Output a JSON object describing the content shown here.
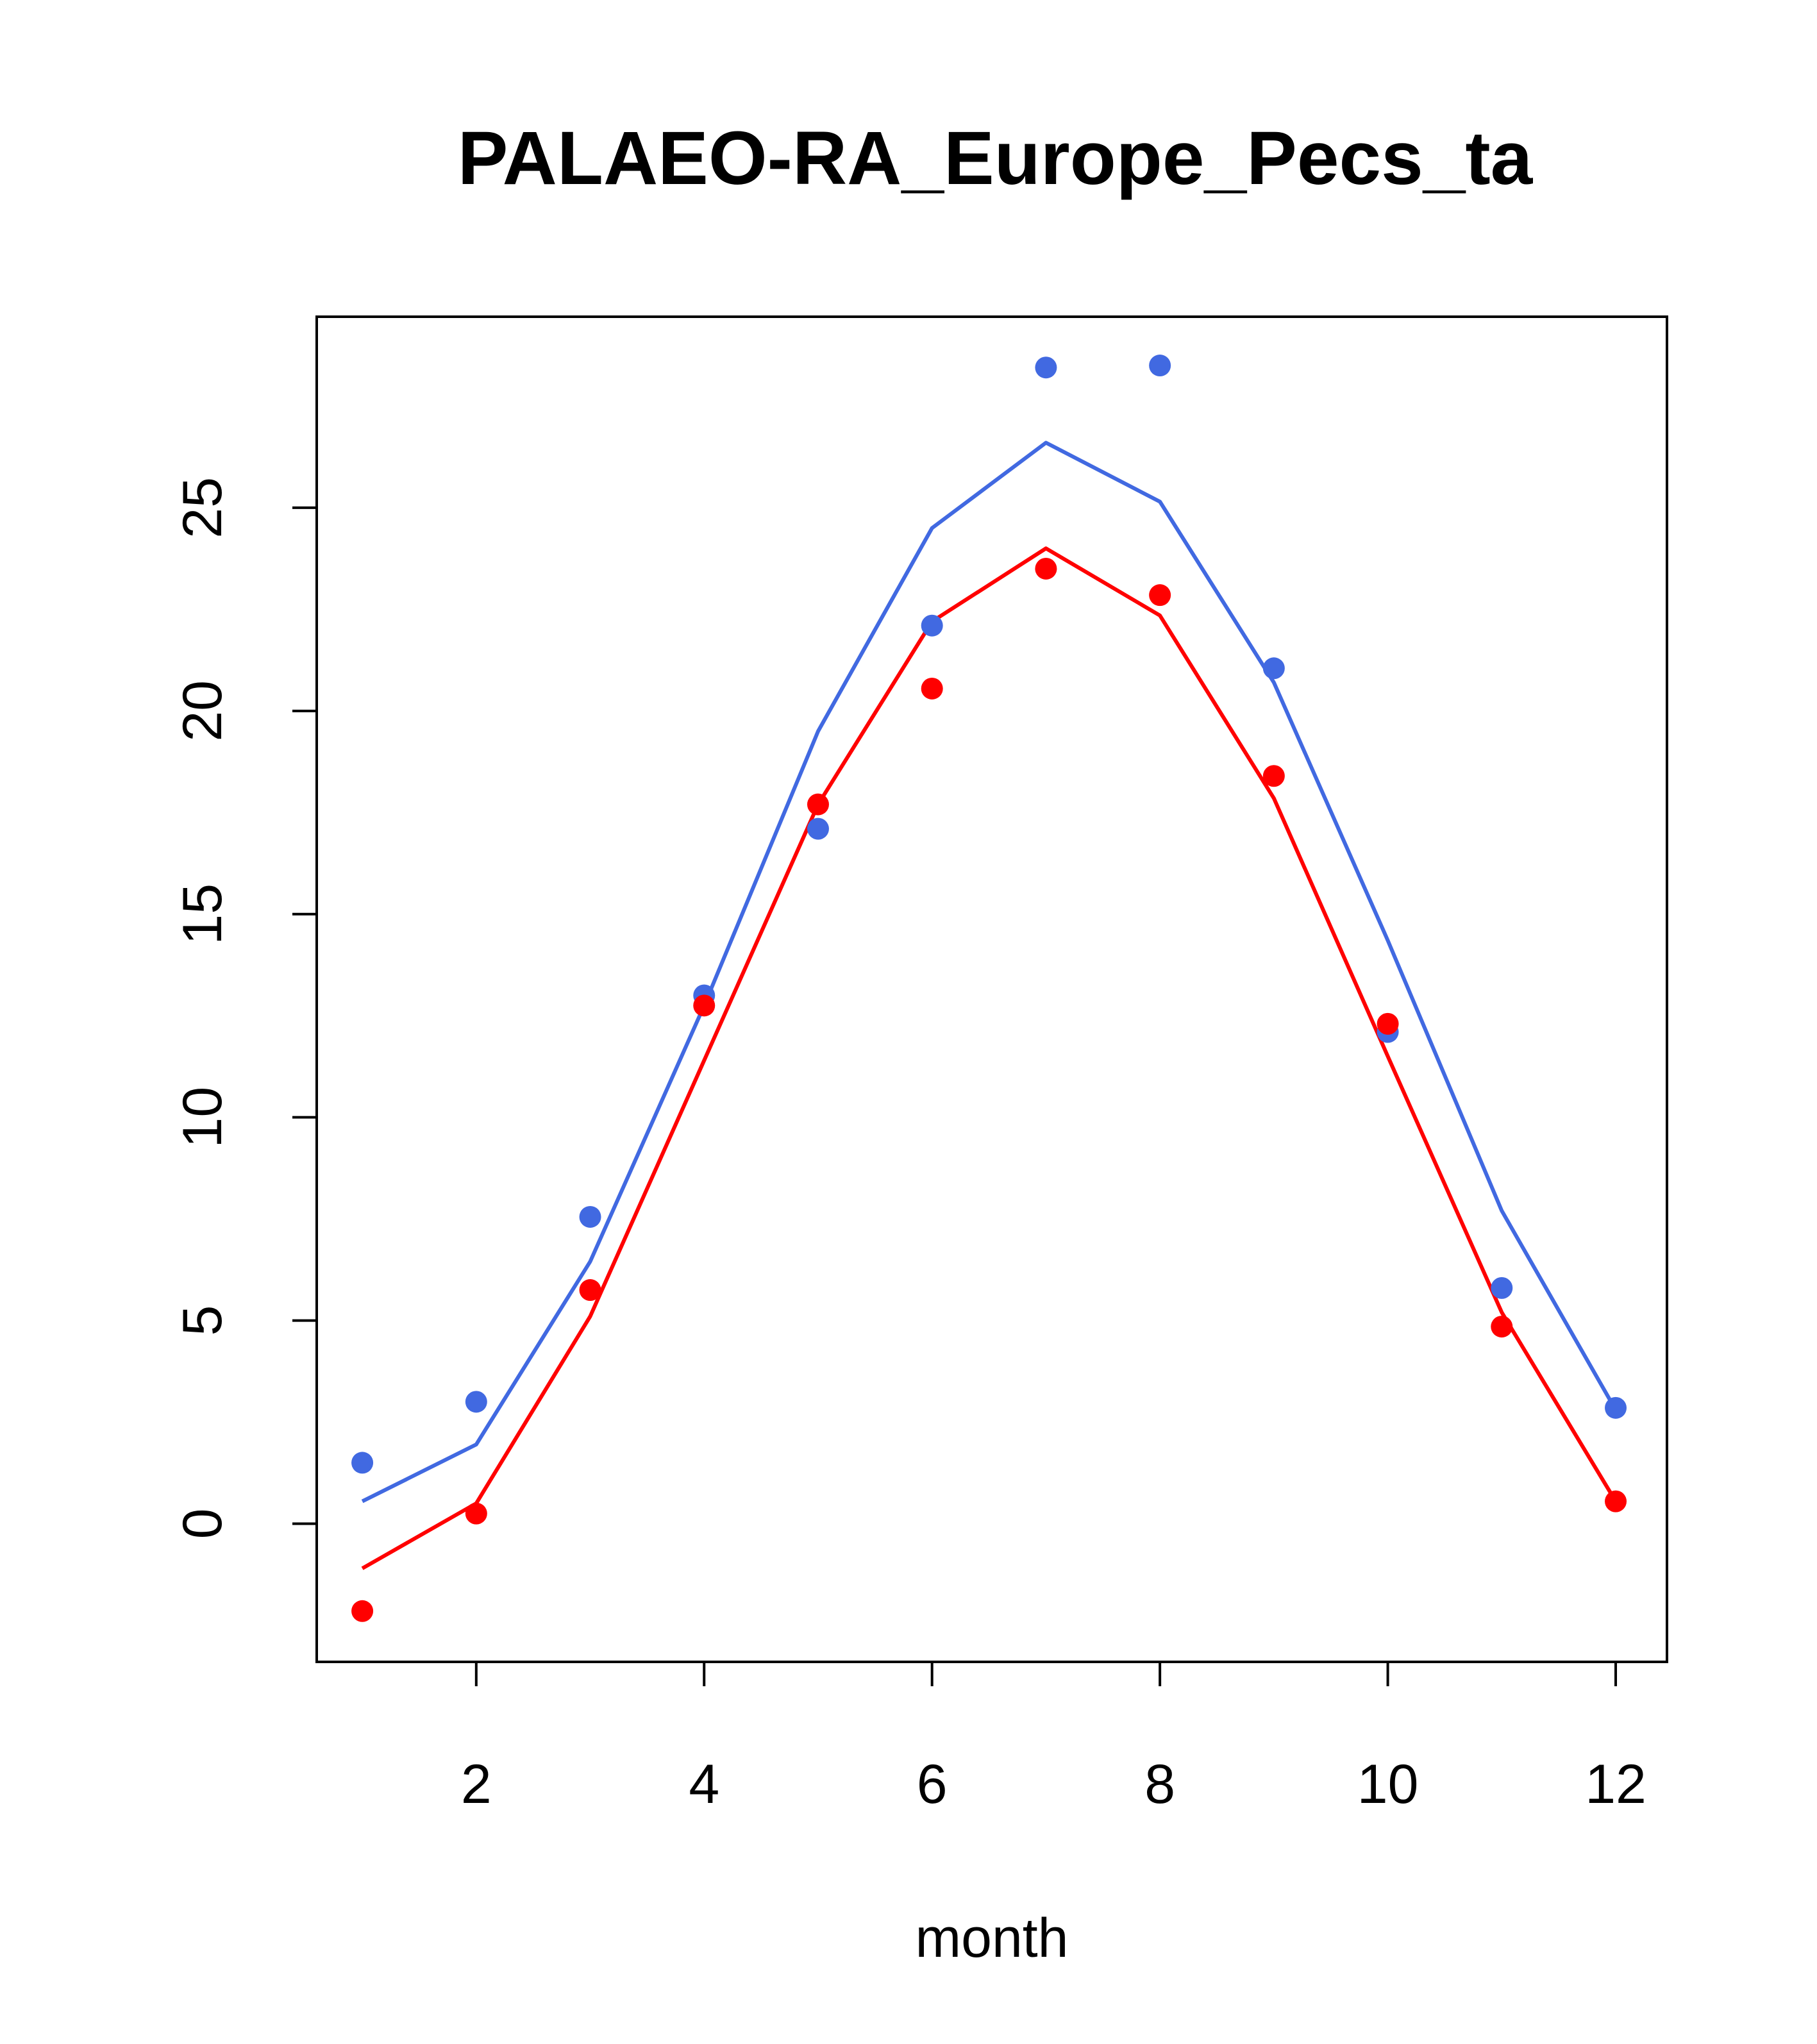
{
  "chart_data": {
    "type": "line",
    "title": "PALAEO-RA_Europe_Pecs_ta",
    "xlabel": "month",
    "ylabel": "",
    "xlim": [
      0.6,
      12.45
    ],
    "ylim": [
      -3.4,
      29.7
    ],
    "xticks": [
      2,
      4,
      6,
      8,
      10,
      12
    ],
    "yticks": [
      0,
      5,
      10,
      15,
      20,
      25
    ],
    "grid": false,
    "legend": "none",
    "x": [
      1,
      2,
      3,
      4,
      5,
      6,
      7,
      8,
      9,
      10,
      11,
      12
    ],
    "series": [
      {
        "color": "#4169E1",
        "line": [
          0.55,
          1.95,
          6.45,
          12.75,
          19.5,
          24.5,
          26.6,
          25.15,
          20.7,
          14.35,
          7.7,
          2.8
        ],
        "points": [
          1.5,
          3.0,
          7.55,
          13.0,
          17.1,
          22.1,
          28.45,
          28.5,
          21.05,
          12.1,
          5.8,
          2.85
        ]
      },
      {
        "color": "#FF0000",
        "line": [
          -1.1,
          0.5,
          5.1,
          11.4,
          17.7,
          22.2,
          24.0,
          22.35,
          17.85,
          11.5,
          5.2,
          0.55
        ],
        "points": [
          -2.15,
          0.25,
          5.75,
          12.75,
          17.7,
          20.55,
          23.5,
          22.85,
          18.4,
          12.3,
          4.85,
          0.55
        ]
      }
    ]
  }
}
